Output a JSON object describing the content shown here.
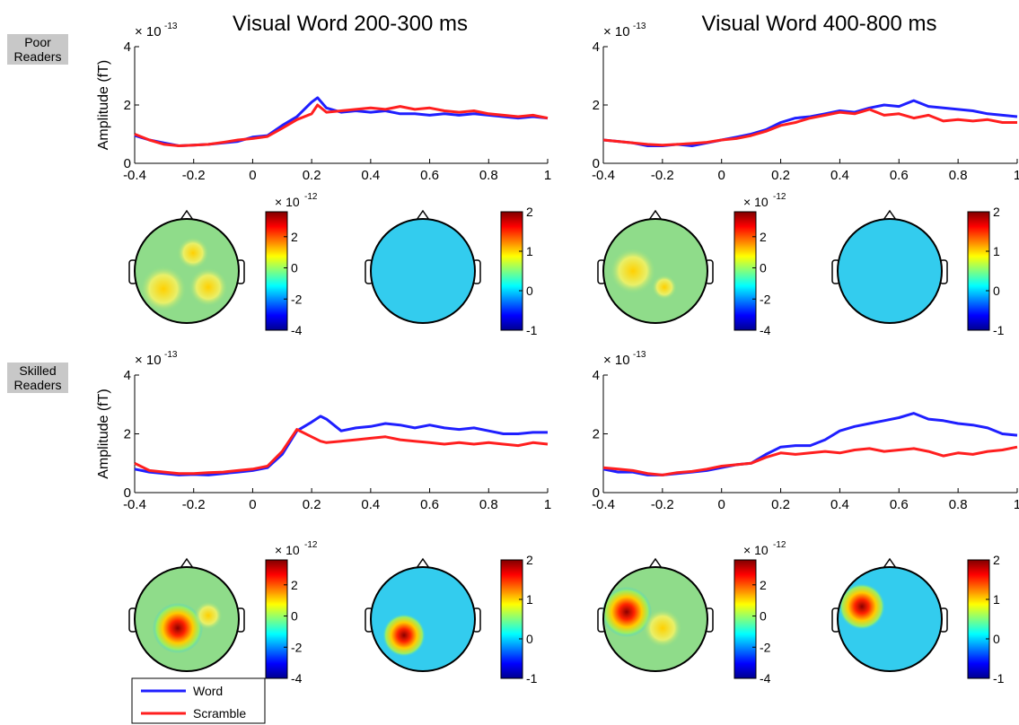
{
  "group_labels": {
    "poor": "Poor\nReaders",
    "skilled": "Skilled\nReaders"
  },
  "colors": {
    "word": "#1f1fff",
    "scramble": "#ff1f1f",
    "axis": "#000000",
    "head_bg": "#33ccee"
  },
  "legend": {
    "word": "Word",
    "scramble": "Scramble"
  },
  "colorbar_sets": {
    "left": {
      "exponent_label": "× 10",
      "exponent": "-12",
      "ticks": [
        "2",
        "0",
        "-2",
        "-4"
      ],
      "range": [
        -4,
        3.6
      ]
    },
    "right": {
      "exponent_label": "",
      "exponent": "",
      "ticks": [
        "2",
        "1",
        "0",
        "-1"
      ],
      "range": [
        -1,
        2
      ]
    }
  },
  "chart_data": [
    {
      "type": "line",
      "title": "Visual Word 200-300 ms",
      "ylabel": "Amplitude (fT)",
      "y_multiplier_label": "× 10",
      "y_multiplier_exp": "-13",
      "xlim": [
        -0.4,
        1
      ],
      "ylim": [
        0,
        4
      ],
      "x_ticks": [
        "-0.4",
        "-0.2",
        "0",
        "0.2",
        "0.4",
        "0.6",
        "0.8",
        "1"
      ],
      "y_ticks": [
        "0",
        "2",
        "4"
      ],
      "x": [
        -0.4,
        -0.35,
        -0.3,
        -0.25,
        -0.2,
        -0.15,
        -0.1,
        -0.05,
        0,
        0.05,
        0.1,
        0.15,
        0.2,
        0.22,
        0.25,
        0.3,
        0.35,
        0.4,
        0.45,
        0.5,
        0.55,
        0.6,
        0.65,
        0.7,
        0.75,
        0.8,
        0.85,
        0.9,
        0.95,
        1
      ],
      "series": [
        {
          "name": "Word",
          "values": [
            0.95,
            0.8,
            0.7,
            0.6,
            0.62,
            0.65,
            0.7,
            0.75,
            0.9,
            0.95,
            1.3,
            1.6,
            2.1,
            2.25,
            1.9,
            1.75,
            1.8,
            1.75,
            1.8,
            1.7,
            1.7,
            1.65,
            1.7,
            1.65,
            1.7,
            1.65,
            1.6,
            1.55,
            1.6,
            1.55
          ]
        },
        {
          "name": "Scramble",
          "values": [
            1.0,
            0.8,
            0.65,
            0.6,
            0.62,
            0.65,
            0.72,
            0.8,
            0.85,
            0.92,
            1.2,
            1.5,
            1.7,
            2.0,
            1.75,
            1.8,
            1.85,
            1.9,
            1.85,
            1.95,
            1.85,
            1.9,
            1.8,
            1.75,
            1.8,
            1.7,
            1.65,
            1.6,
            1.65,
            1.55
          ]
        }
      ]
    },
    {
      "type": "line",
      "title": "Visual Word 400-800 ms",
      "ylabel": "",
      "y_multiplier_label": "× 10",
      "y_multiplier_exp": "-13",
      "xlim": [
        -0.4,
        1
      ],
      "ylim": [
        0,
        4
      ],
      "x_ticks": [
        "-0.4",
        "-0.2",
        "0",
        "0.2",
        "0.4",
        "0.6",
        "0.8",
        "1"
      ],
      "y_ticks": [
        "0",
        "2",
        "4"
      ],
      "x": [
        -0.4,
        -0.35,
        -0.3,
        -0.25,
        -0.2,
        -0.15,
        -0.1,
        -0.05,
        0,
        0.05,
        0.1,
        0.15,
        0.2,
        0.25,
        0.3,
        0.35,
        0.4,
        0.45,
        0.5,
        0.55,
        0.6,
        0.65,
        0.7,
        0.75,
        0.8,
        0.85,
        0.9,
        0.95,
        1
      ],
      "series": [
        {
          "name": "Word",
          "values": [
            0.8,
            0.75,
            0.7,
            0.6,
            0.6,
            0.65,
            0.6,
            0.7,
            0.8,
            0.9,
            1.0,
            1.15,
            1.4,
            1.55,
            1.6,
            1.7,
            1.8,
            1.75,
            1.9,
            2.0,
            1.95,
            2.15,
            1.95,
            1.9,
            1.85,
            1.8,
            1.7,
            1.65,
            1.6
          ]
        },
        {
          "name": "Scramble",
          "values": [
            0.8,
            0.75,
            0.7,
            0.65,
            0.62,
            0.65,
            0.68,
            0.72,
            0.8,
            0.85,
            0.95,
            1.1,
            1.3,
            1.4,
            1.55,
            1.65,
            1.75,
            1.7,
            1.85,
            1.65,
            1.7,
            1.55,
            1.65,
            1.45,
            1.5,
            1.45,
            1.5,
            1.4,
            1.4
          ]
        }
      ]
    },
    {
      "type": "line",
      "title": "",
      "ylabel": "Amplitude (fT)",
      "y_multiplier_label": "× 10",
      "y_multiplier_exp": "-13",
      "xlim": [
        -0.4,
        1
      ],
      "ylim": [
        0,
        4
      ],
      "x_ticks": [
        "-0.4",
        "-0.2",
        "0",
        "0.2",
        "0.4",
        "0.6",
        "0.8",
        "1"
      ],
      "y_ticks": [
        "0",
        "2",
        "4"
      ],
      "x": [
        -0.4,
        -0.35,
        -0.3,
        -0.25,
        -0.2,
        -0.15,
        -0.1,
        -0.05,
        0,
        0.05,
        0.1,
        0.15,
        0.2,
        0.23,
        0.25,
        0.3,
        0.35,
        0.4,
        0.45,
        0.5,
        0.55,
        0.6,
        0.65,
        0.7,
        0.75,
        0.8,
        0.85,
        0.9,
        0.95,
        1
      ],
      "series": [
        {
          "name": "Word",
          "values": [
            0.8,
            0.7,
            0.65,
            0.6,
            0.62,
            0.6,
            0.65,
            0.7,
            0.75,
            0.85,
            1.3,
            2.1,
            2.4,
            2.6,
            2.5,
            2.1,
            2.2,
            2.25,
            2.35,
            2.3,
            2.2,
            2.3,
            2.2,
            2.15,
            2.2,
            2.1,
            2.0,
            2.0,
            2.05,
            2.05
          ]
        },
        {
          "name": "Scramble",
          "values": [
            1.0,
            0.75,
            0.7,
            0.65,
            0.65,
            0.68,
            0.7,
            0.75,
            0.8,
            0.9,
            1.4,
            2.15,
            1.9,
            1.75,
            1.7,
            1.75,
            1.8,
            1.85,
            1.9,
            1.8,
            1.75,
            1.7,
            1.65,
            1.7,
            1.65,
            1.7,
            1.65,
            1.6,
            1.7,
            1.65
          ]
        }
      ]
    },
    {
      "type": "line",
      "title": "",
      "ylabel": "",
      "y_multiplier_label": "× 10",
      "y_multiplier_exp": "-13",
      "xlim": [
        -0.4,
        1
      ],
      "ylim": [
        0,
        4
      ],
      "x_ticks": [
        "-0.4",
        "-0.2",
        "0",
        "0.2",
        "0.4",
        "0.6",
        "0.8",
        "1"
      ],
      "y_ticks": [
        "0",
        "2",
        "4"
      ],
      "x": [
        -0.4,
        -0.35,
        -0.3,
        -0.25,
        -0.2,
        -0.15,
        -0.1,
        -0.05,
        0,
        0.05,
        0.1,
        0.15,
        0.2,
        0.25,
        0.3,
        0.35,
        0.4,
        0.45,
        0.5,
        0.55,
        0.6,
        0.65,
        0.7,
        0.75,
        0.8,
        0.85,
        0.9,
        0.95,
        1
      ],
      "series": [
        {
          "name": "Word",
          "values": [
            0.8,
            0.7,
            0.7,
            0.6,
            0.6,
            0.65,
            0.7,
            0.75,
            0.85,
            0.95,
            1.0,
            1.3,
            1.55,
            1.6,
            1.6,
            1.8,
            2.1,
            2.25,
            2.35,
            2.45,
            2.55,
            2.7,
            2.5,
            2.45,
            2.35,
            2.3,
            2.2,
            2.0,
            1.95
          ]
        },
        {
          "name": "Scramble",
          "values": [
            0.85,
            0.8,
            0.75,
            0.65,
            0.6,
            0.68,
            0.72,
            0.8,
            0.9,
            0.95,
            1.0,
            1.2,
            1.35,
            1.3,
            1.35,
            1.4,
            1.35,
            1.45,
            1.5,
            1.4,
            1.45,
            1.5,
            1.4,
            1.25,
            1.35,
            1.3,
            1.4,
            1.45,
            1.55
          ]
        }
      ]
    }
  ]
}
